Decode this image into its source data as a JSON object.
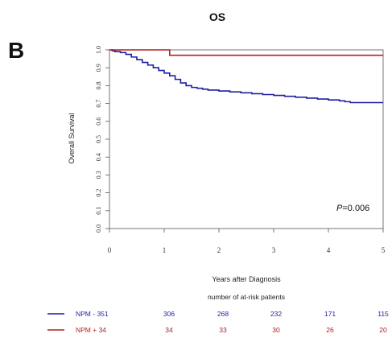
{
  "panel_letter": "B",
  "chart_data": {
    "type": "line",
    "title": "OS",
    "xlabel": "Years after Diagnosis",
    "ylabel": "Overall Survival",
    "xlim": [
      0,
      5
    ],
    "ylim": [
      0,
      1
    ],
    "x_ticks": [
      "0",
      "1",
      "2",
      "3",
      "4",
      "5"
    ],
    "y_ticks": [
      "0.0",
      "0.1",
      "0.2",
      "0.3",
      "0.4",
      "0.5",
      "0.6",
      "0.7",
      "0.8",
      "0.9",
      "1.0"
    ],
    "annotation": {
      "p_label": "P",
      "p_value": "=0.006"
    },
    "series": [
      {
        "color": "#1f1fa0",
        "step": true,
        "x": [
          0,
          0.05,
          0.1,
          0.2,
          0.3,
          0.4,
          0.5,
          0.6,
          0.7,
          0.8,
          0.9,
          1.0,
          1.1,
          1.2,
          1.3,
          1.4,
          1.5,
          1.6,
          1.7,
          1.8,
          1.9,
          2.0,
          2.2,
          2.4,
          2.6,
          2.8,
          3.0,
          3.2,
          3.4,
          3.6,
          3.8,
          4.0,
          4.2,
          4.3,
          4.4,
          4.6,
          4.8,
          5.0
        ],
        "y": [
          1.0,
          0.995,
          0.99,
          0.985,
          0.975,
          0.96,
          0.945,
          0.93,
          0.915,
          0.9,
          0.885,
          0.87,
          0.855,
          0.835,
          0.815,
          0.8,
          0.79,
          0.785,
          0.78,
          0.775,
          0.775,
          0.77,
          0.765,
          0.76,
          0.755,
          0.75,
          0.745,
          0.74,
          0.735,
          0.73,
          0.725,
          0.72,
          0.715,
          0.71,
          0.705,
          0.705,
          0.705,
          0.705
        ]
      },
      {
        "color": "#b02020",
        "step": true,
        "x": [
          0,
          1.1,
          1.1,
          5.0
        ],
        "y": [
          1.0,
          1.0,
          0.97,
          0.97
        ]
      }
    ]
  },
  "risk_table": {
    "title": "number of at-risk patients",
    "rows": [
      {
        "label": "NPM - 351",
        "color": "#1f1fa0",
        "values": [
          "306",
          "268",
          "232",
          "171",
          "115"
        ]
      },
      {
        "label": "NPM + 34",
        "color": "#b02020",
        "values": [
          "34",
          "33",
          "30",
          "26",
          "20"
        ]
      }
    ]
  }
}
